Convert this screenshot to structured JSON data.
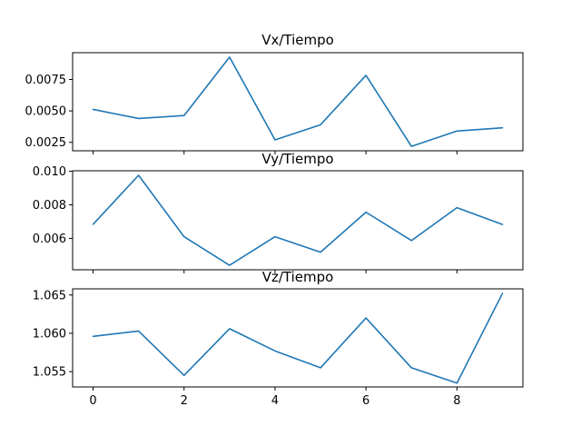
{
  "chart_data": [
    {
      "type": "line",
      "title": "Vx/Tiempo",
      "x": [
        0,
        1,
        2,
        3,
        4,
        5,
        6,
        7,
        8,
        9
      ],
      "series": [
        {
          "values": [
            0.00512,
            0.0044,
            0.00463,
            0.00928,
            0.0027,
            0.0039,
            0.00783,
            0.00218,
            0.0034,
            0.00366
          ]
        }
      ],
      "xlim": [
        -0.45,
        9.45
      ],
      "ylim": [
        0.00183,
        0.00963
      ],
      "yticks": [
        0.0025,
        0.005,
        0.0075
      ],
      "ytick_labels": [
        "0.0025",
        "0.0050",
        "0.0075"
      ],
      "xticks": [
        0,
        2,
        4,
        6,
        8
      ],
      "xtick_labels": [],
      "grid": false
    },
    {
      "type": "line",
      "title": "Vy/Tiempo",
      "x": [
        0,
        1,
        2,
        3,
        4,
        5,
        6,
        7,
        8,
        9
      ],
      "series": [
        {
          "values": [
            0.00684,
            0.00976,
            0.0061,
            0.0044,
            0.0061,
            0.00518,
            0.00756,
            0.00587,
            0.00783,
            0.00683
          ]
        }
      ],
      "xlim": [
        -0.45,
        9.45
      ],
      "ylim": [
        0.00413,
        0.01003
      ],
      "yticks": [
        0.006,
        0.008,
        0.01
      ],
      "ytick_labels": [
        "0.006",
        "0.008",
        "0.010"
      ],
      "xticks": [
        0,
        2,
        4,
        6,
        8
      ],
      "xtick_labels": [],
      "grid": false
    },
    {
      "type": "line",
      "title": "Vz/Tiempo",
      "x": [
        0,
        1,
        2,
        3,
        4,
        5,
        6,
        7,
        8,
        9
      ],
      "series": [
        {
          "values": [
            1.0596,
            1.0603,
            1.0545,
            1.0606,
            1.0577,
            1.0555,
            1.062,
            1.0555,
            1.0535,
            1.0652
          ]
        }
      ],
      "xlim": [
        -0.45,
        9.45
      ],
      "ylim": [
        1.053,
        1.0658
      ],
      "yticks": [
        1.055,
        1.06,
        1.065
      ],
      "ytick_labels": [
        "1.055",
        "1.060",
        "1.065"
      ],
      "xticks": [
        0,
        2,
        4,
        6,
        8
      ],
      "xtick_labels": [
        "0",
        "2",
        "4",
        "6",
        "8"
      ],
      "grid": false
    }
  ],
  "colors": {
    "line": "#1f77b4",
    "frame": "#000000",
    "background": "#ffffff"
  }
}
